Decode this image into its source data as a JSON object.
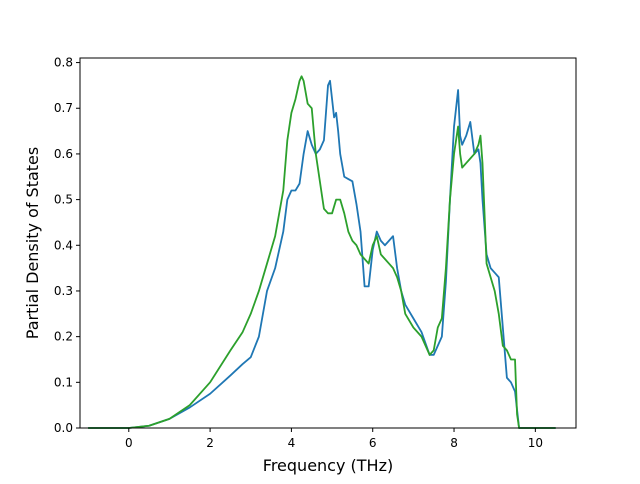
{
  "chart_data": {
    "type": "line",
    "xlabel": "Frequency (THz)",
    "ylabel": "Partial Density of States",
    "xlim": [
      -1.2,
      11.0
    ],
    "ylim": [
      0.0,
      0.81
    ],
    "xticks": [
      0,
      2,
      4,
      6,
      8,
      10
    ],
    "yticks": [
      0.0,
      0.1,
      0.2,
      0.3,
      0.4,
      0.5,
      0.6,
      0.7,
      0.8
    ],
    "xtick_labels": [
      "0",
      "2",
      "4",
      "6",
      "8",
      "10"
    ],
    "ytick_labels": [
      "0.0",
      "0.1",
      "0.2",
      "0.3",
      "0.4",
      "0.5",
      "0.6",
      "0.7",
      "0.8"
    ],
    "grid": false,
    "legend": "none",
    "series": [
      {
        "color": "#1f77b4",
        "x": [
          -1.0,
          0.0,
          0.5,
          1.0,
          1.5,
          2.0,
          2.5,
          2.8,
          3.0,
          3.2,
          3.4,
          3.6,
          3.8,
          3.9,
          4.0,
          4.1,
          4.2,
          4.3,
          4.4,
          4.5,
          4.6,
          4.7,
          4.8,
          4.9,
          4.95,
          5.0,
          5.05,
          5.1,
          5.15,
          5.2,
          5.3,
          5.4,
          5.5,
          5.6,
          5.7,
          5.8,
          5.9,
          6.0,
          6.1,
          6.2,
          6.3,
          6.4,
          6.5,
          6.6,
          6.7,
          6.8,
          7.0,
          7.2,
          7.4,
          7.5,
          7.6,
          7.7,
          7.8,
          7.9,
          8.0,
          8.1,
          8.15,
          8.2,
          8.3,
          8.4,
          8.5,
          8.6,
          8.65,
          8.7,
          8.8,
          8.9,
          9.0,
          9.1,
          9.2,
          9.3,
          9.4,
          9.5,
          9.55,
          9.6,
          9.8,
          10.0,
          10.5
        ],
        "y": [
          0.0,
          0.0,
          0.005,
          0.02,
          0.045,
          0.075,
          0.115,
          0.14,
          0.155,
          0.2,
          0.3,
          0.35,
          0.43,
          0.5,
          0.52,
          0.52,
          0.535,
          0.6,
          0.65,
          0.62,
          0.6,
          0.61,
          0.63,
          0.75,
          0.76,
          0.72,
          0.68,
          0.69,
          0.65,
          0.6,
          0.55,
          0.545,
          0.54,
          0.49,
          0.43,
          0.31,
          0.31,
          0.39,
          0.43,
          0.41,
          0.4,
          0.41,
          0.42,
          0.35,
          0.3,
          0.27,
          0.24,
          0.21,
          0.16,
          0.16,
          0.18,
          0.2,
          0.32,
          0.5,
          0.66,
          0.74,
          0.64,
          0.62,
          0.64,
          0.67,
          0.6,
          0.61,
          0.58,
          0.5,
          0.38,
          0.35,
          0.34,
          0.33,
          0.22,
          0.11,
          0.1,
          0.08,
          0.04,
          0.0,
          0.0,
          0.0,
          0.0
        ]
      },
      {
        "color": "#2ca02c",
        "x": [
          -1.0,
          0.0,
          0.5,
          1.0,
          1.5,
          2.0,
          2.5,
          2.8,
          3.0,
          3.2,
          3.4,
          3.6,
          3.8,
          3.9,
          4.0,
          4.1,
          4.2,
          4.25,
          4.3,
          4.4,
          4.5,
          4.6,
          4.7,
          4.8,
          4.9,
          5.0,
          5.1,
          5.2,
          5.3,
          5.4,
          5.5,
          5.6,
          5.7,
          5.8,
          5.9,
          6.0,
          6.1,
          6.2,
          6.3,
          6.4,
          6.5,
          6.6,
          6.7,
          6.8,
          7.0,
          7.2,
          7.4,
          7.5,
          7.6,
          7.7,
          7.8,
          7.9,
          8.0,
          8.1,
          8.15,
          8.2,
          8.3,
          8.4,
          8.5,
          8.6,
          8.65,
          8.7,
          8.8,
          8.9,
          9.0,
          9.1,
          9.2,
          9.3,
          9.4,
          9.5,
          9.55,
          9.6,
          9.8,
          10.0,
          10.5
        ],
        "y": [
          0.0,
          0.0,
          0.005,
          0.02,
          0.05,
          0.1,
          0.17,
          0.21,
          0.25,
          0.3,
          0.36,
          0.42,
          0.52,
          0.63,
          0.69,
          0.72,
          0.76,
          0.77,
          0.76,
          0.71,
          0.7,
          0.6,
          0.54,
          0.48,
          0.47,
          0.47,
          0.5,
          0.5,
          0.47,
          0.43,
          0.41,
          0.4,
          0.38,
          0.37,
          0.36,
          0.4,
          0.42,
          0.38,
          0.37,
          0.36,
          0.35,
          0.33,
          0.3,
          0.25,
          0.22,
          0.2,
          0.16,
          0.17,
          0.22,
          0.24,
          0.35,
          0.5,
          0.6,
          0.66,
          0.6,
          0.57,
          0.58,
          0.59,
          0.6,
          0.62,
          0.64,
          0.58,
          0.36,
          0.33,
          0.3,
          0.25,
          0.18,
          0.17,
          0.15,
          0.15,
          0.03,
          0.0,
          0.0,
          0.0,
          0.0
        ]
      }
    ]
  }
}
